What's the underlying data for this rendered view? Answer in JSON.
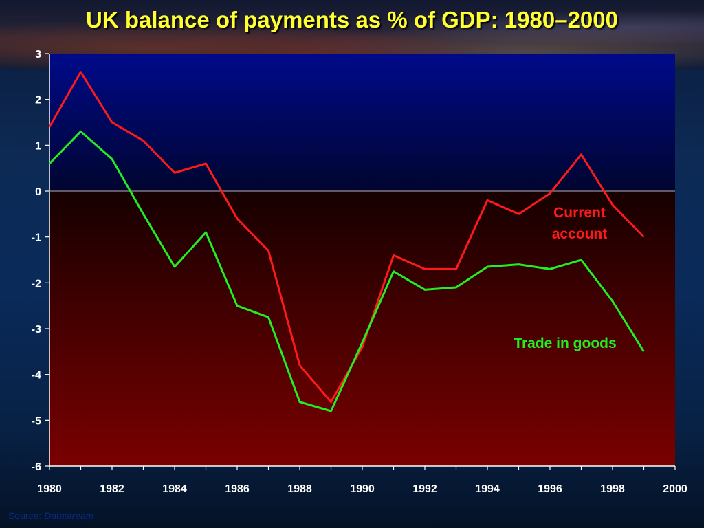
{
  "title": "UK balance of payments as % of GDP: 1980–2000",
  "source_label": "Source:",
  "source_name": "Datastream",
  "colors": {
    "title": "#ffff33",
    "current_account": "#ff1a1a",
    "trade_in_goods": "#22ee22",
    "plot_top": "#000a8a",
    "plot_bottom": "#7a0000",
    "axis_text": "#ffffff"
  },
  "chart_data": {
    "type": "line",
    "title": "UK balance of payments as % of GDP: 1980–2000",
    "xlabel": "",
    "ylabel": "",
    "xlim": [
      1980,
      2000
    ],
    "ylim": [
      -6,
      3
    ],
    "x_ticks": [
      "1980",
      "1982",
      "1984",
      "1986",
      "1988",
      "1990",
      "1992",
      "1994",
      "1996",
      "1998",
      "2000"
    ],
    "y_ticks": [
      "3",
      "2",
      "1",
      "0",
      "-1",
      "-2",
      "-3",
      "-4",
      "-5",
      "-6"
    ],
    "grid": false,
    "zero_line": true,
    "x": [
      1980,
      1981,
      1982,
      1983,
      1984,
      1985,
      1986,
      1987,
      1988,
      1989,
      1990,
      1991,
      1992,
      1993,
      1994,
      1995,
      1996,
      1997,
      1998,
      1999
    ],
    "series": [
      {
        "name": "Current account",
        "label_lines": [
          "Current",
          "account"
        ],
        "color": "#ff1a1a",
        "values": [
          1.4,
          2.6,
          1.5,
          1.1,
          0.4,
          0.6,
          -0.6,
          -1.3,
          -3.8,
          -4.6,
          -3.4,
          -1.4,
          -1.7,
          -1.7,
          -0.2,
          -0.5,
          -0.05,
          0.8,
          -0.3,
          -1.0
        ]
      },
      {
        "name": "Trade in goods",
        "label_lines": [
          "Trade in goods"
        ],
        "color": "#22ee22",
        "values": [
          0.6,
          1.3,
          0.7,
          -0.5,
          -1.65,
          -0.9,
          -2.5,
          -2.75,
          -4.6,
          -4.8,
          -3.3,
          -1.75,
          -2.15,
          -2.1,
          -1.65,
          -1.6,
          -1.7,
          -1.5,
          -2.4,
          -3.5
        ]
      }
    ]
  }
}
